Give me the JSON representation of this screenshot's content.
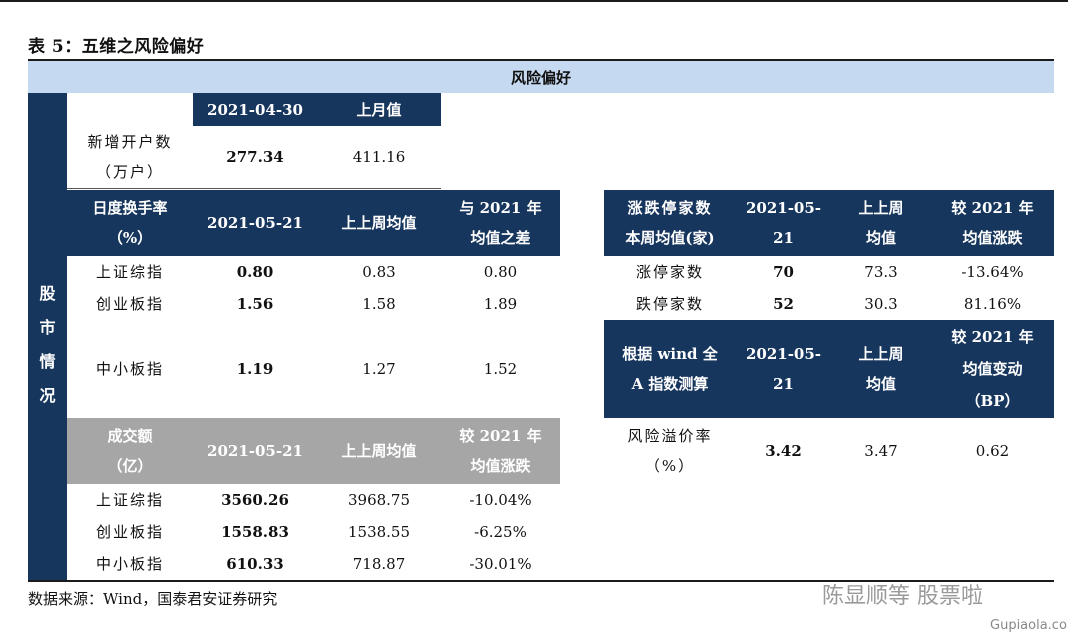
{
  "title": "表 5：五维之风险偏好",
  "band_title": "风险偏好",
  "side_label": [
    "股",
    "市",
    "情",
    "况"
  ],
  "accounts": {
    "headers": [
      "2021-04-30",
      "上月值"
    ],
    "label_lines": [
      "新增开户数",
      "（万户）"
    ],
    "current": "277.34",
    "prev": "411.16"
  },
  "turnover": {
    "label_lines": [
      "日度换手率",
      "（%）"
    ],
    "headers": [
      "2021-05-21",
      "上上周均值"
    ],
    "diff_header_lines": [
      "与 2021 年",
      "均值之差"
    ],
    "rows": [
      {
        "name": "上证综指",
        "current": "0.80",
        "prev": "0.83",
        "diff": "0.80"
      },
      {
        "name": "创业板指",
        "current": "1.56",
        "prev": "1.58",
        "diff": "1.89"
      },
      {
        "name": "中小板指",
        "current": "1.19",
        "prev": "1.27",
        "diff": "1.52"
      }
    ]
  },
  "volume": {
    "label_lines": [
      "成交额",
      "（亿）"
    ],
    "headers": [
      "2021-05-21",
      "上上周均值"
    ],
    "change_header_lines": [
      "较 2021 年",
      "均值涨跌"
    ],
    "rows": [
      {
        "name": "上证综指",
        "current": "3560.26",
        "prev": "3968.75",
        "change": "-10.04%"
      },
      {
        "name": "创业板指",
        "current": "1558.83",
        "prev": "1538.55",
        "change": "-6.25%"
      },
      {
        "name": "中小板指",
        "current": "610.33",
        "prev": "718.87",
        "change": "-30.01%"
      }
    ]
  },
  "limits": {
    "label_lines": [
      "涨跌停家数",
      "本周均值(家)"
    ],
    "date_lines": [
      "2021-05-",
      "21"
    ],
    "prev_lines": [
      "上上周",
      "均值"
    ],
    "change_lines": [
      "较 2021 年",
      "均值涨跌"
    ],
    "rows": [
      {
        "name": "涨停家数",
        "current": "70",
        "prev": "73.3",
        "change": "-13.64%"
      },
      {
        "name": "跌停家数",
        "current": "52",
        "prev": "30.3",
        "change": "81.16%"
      }
    ]
  },
  "premium": {
    "label_lines": [
      "根据 wind 全",
      "A 指数测算"
    ],
    "date_lines": [
      "2021-05-",
      "21"
    ],
    "prev_lines": [
      "上上周",
      "均值"
    ],
    "change_lines": [
      "较 2021 年",
      "均值变动",
      "（BP）"
    ],
    "row": {
      "name_lines": [
        "风险溢价率",
        "（%）"
      ],
      "current": "3.42",
      "prev": "3.47",
      "change": "0.62"
    }
  },
  "source": "数据来源：Wind，国泰君安证券研究",
  "watermark": {
    "account": "陈显顺等 股票啦",
    "site": "Gupiaola.com"
  }
}
